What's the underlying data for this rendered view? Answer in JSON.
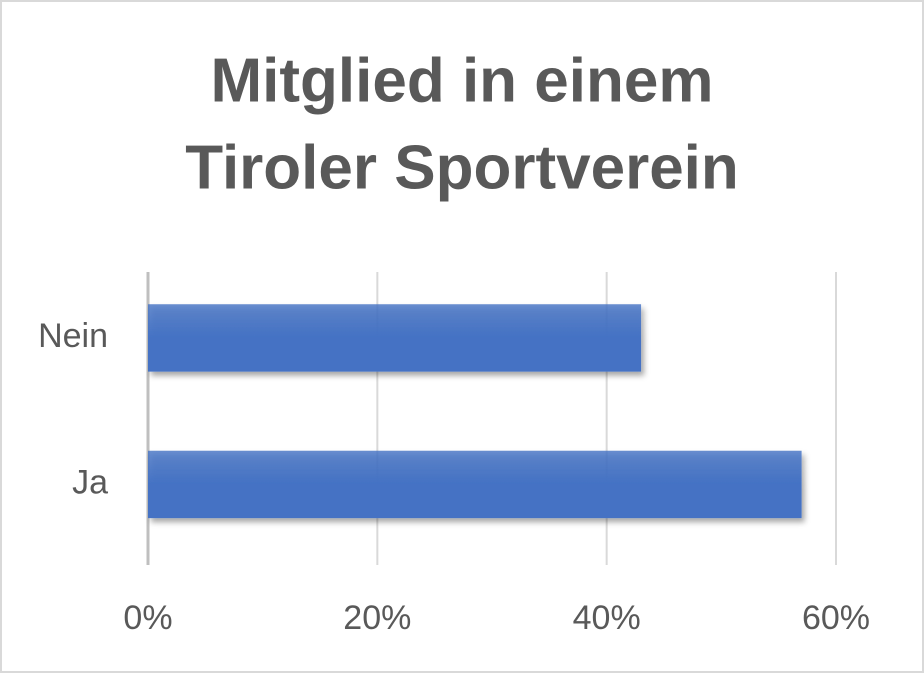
{
  "chart_data": {
    "type": "bar",
    "orientation": "horizontal",
    "title": [
      "Mitglied in einem",
      "Tiroler Sportverein"
    ],
    "categories": [
      "Nein",
      "Ja"
    ],
    "values": [
      43,
      57
    ],
    "color": "#4472c4",
    "xlim": [
      0,
      60
    ],
    "xticks": [
      {
        "value": 0,
        "label": "0%"
      },
      {
        "value": 20,
        "label": "20%"
      },
      {
        "value": 40,
        "label": "40%"
      },
      {
        "value": 60,
        "label": "60%"
      }
    ],
    "grid": true
  }
}
